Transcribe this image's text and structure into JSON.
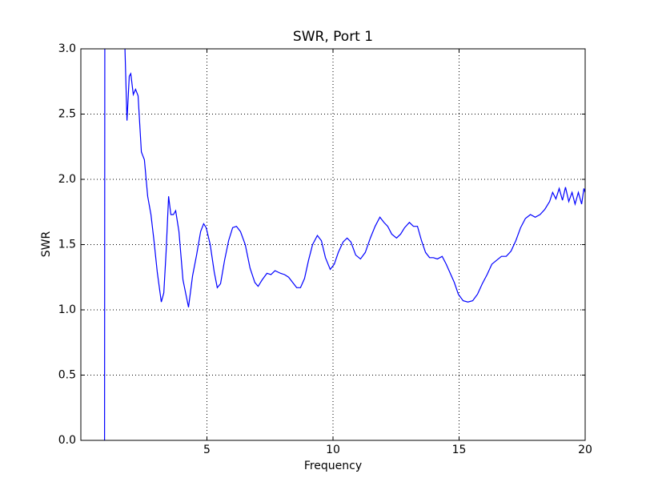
{
  "chart_data": {
    "type": "line",
    "title": "SWR, Port 1",
    "x_label": "Frequency",
    "y_label": "SWR",
    "x": [
      0.94,
      0.96,
      1.72,
      1.83,
      1.92,
      1.98,
      2.08,
      2.17,
      2.27,
      2.4,
      2.46,
      2.52,
      2.65,
      2.78,
      2.9,
      3.03,
      3.19,
      3.29,
      3.38,
      3.48,
      3.57,
      3.67,
      3.76,
      3.89,
      4.05,
      4.27,
      4.43,
      4.59,
      4.75,
      4.87,
      4.97,
      5.13,
      5.29,
      5.41,
      5.54,
      5.7,
      5.86,
      6.02,
      6.17,
      6.33,
      6.52,
      6.71,
      6.9,
      7.03,
      7.19,
      7.38,
      7.54,
      7.7,
      7.92,
      8.08,
      8.24,
      8.4,
      8.56,
      8.71,
      8.87,
      9.03,
      9.19,
      9.38,
      9.54,
      9.7,
      9.89,
      10.05,
      10.21,
      10.4,
      10.56,
      10.71,
      10.9,
      11.09,
      11.28,
      11.48,
      11.67,
      11.86,
      12.02,
      12.17,
      12.33,
      12.52,
      12.68,
      12.84,
      13.03,
      13.19,
      13.35,
      13.51,
      13.67,
      13.83,
      13.98,
      14.14,
      14.33,
      14.49,
      14.65,
      14.81,
      14.97,
      15.16,
      15.35,
      15.54,
      15.73,
      15.92,
      16.11,
      16.3,
      16.49,
      16.68,
      16.87,
      17.06,
      17.25,
      17.44,
      17.63,
      17.83,
      18.02,
      18.21,
      18.4,
      18.59,
      18.71,
      18.84,
      18.97,
      19.1,
      19.22,
      19.35,
      19.48,
      19.6,
      19.73,
      19.86,
      19.95,
      20.0
    ],
    "values": [
      0,
      6,
      3.2,
      2.45,
      2.79,
      2.81,
      2.65,
      2.69,
      2.64,
      2.21,
      2.18,
      2.15,
      1.87,
      1.73,
      1.53,
      1.29,
      1.06,
      1.13,
      1.44,
      1.87,
      1.73,
      1.73,
      1.76,
      1.6,
      1.23,
      1.02,
      1.26,
      1.42,
      1.6,
      1.66,
      1.63,
      1.5,
      1.29,
      1.17,
      1.2,
      1.38,
      1.53,
      1.63,
      1.64,
      1.6,
      1.5,
      1.32,
      1.21,
      1.18,
      1.23,
      1.28,
      1.27,
      1.3,
      1.28,
      1.27,
      1.25,
      1.21,
      1.17,
      1.17,
      1.24,
      1.38,
      1.5,
      1.57,
      1.53,
      1.4,
      1.31,
      1.35,
      1.44,
      1.52,
      1.55,
      1.52,
      1.42,
      1.39,
      1.44,
      1.55,
      1.64,
      1.71,
      1.67,
      1.64,
      1.58,
      1.55,
      1.58,
      1.63,
      1.67,
      1.64,
      1.64,
      1.53,
      1.44,
      1.4,
      1.4,
      1.39,
      1.41,
      1.35,
      1.28,
      1.21,
      1.12,
      1.07,
      1.06,
      1.07,
      1.12,
      1.2,
      1.27,
      1.35,
      1.38,
      1.41,
      1.41,
      1.45,
      1.53,
      1.63,
      1.7,
      1.73,
      1.71,
      1.73,
      1.77,
      1.83,
      1.9,
      1.85,
      1.93,
      1.84,
      1.94,
      1.83,
      1.9,
      1.81,
      1.9,
      1.81,
      1.93,
      1.9
    ],
    "color": "#0000ff",
    "xlim": [
      0,
      20
    ],
    "xticks": [
      5,
      10,
      15,
      20
    ],
    "ylim": [
      0,
      3
    ],
    "yticks": [
      {
        "value": 0,
        "label": "0.0"
      },
      {
        "value": 0.5,
        "label": "0.5"
      },
      {
        "value": 1,
        "label": "1.0"
      },
      {
        "value": 1.5,
        "label": "1.5"
      },
      {
        "value": 2,
        "label": "2.0"
      },
      {
        "value": 2.5,
        "label": "2.5"
      },
      {
        "value": 3,
        "label": "3.0"
      }
    ],
    "grid": true
  }
}
